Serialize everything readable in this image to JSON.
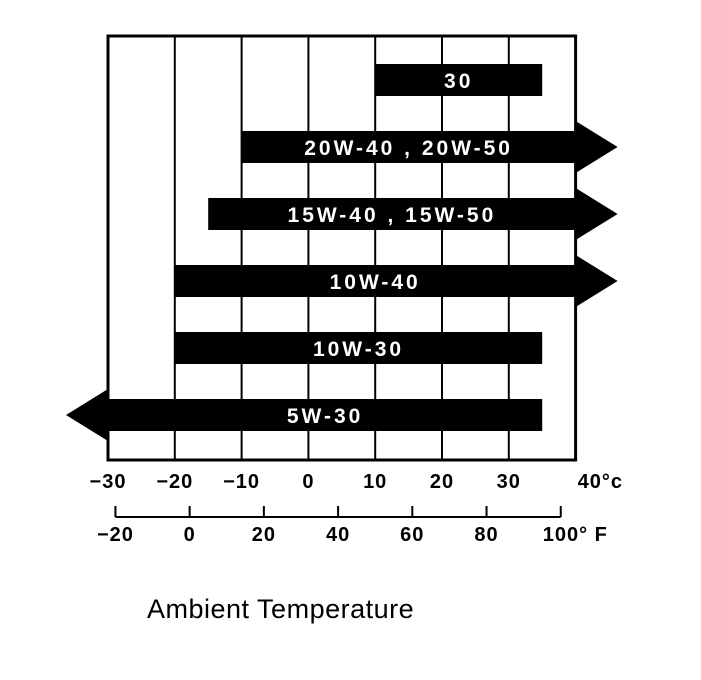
{
  "chart_data": {
    "type": "bar",
    "subtype": "horizontal-range",
    "title": "",
    "xlabel": "Ambient Temperature",
    "ylabel": "",
    "grid": true,
    "celsius_axis": {
      "range": [
        -30,
        40
      ],
      "ticks": [
        -30,
        -20,
        -10,
        0,
        10,
        20,
        30,
        40
      ],
      "unit_label": "°c"
    },
    "fahrenheit_axis": {
      "range": [
        -20,
        100
      ],
      "ticks": [
        -20,
        0,
        20,
        40,
        60,
        80,
        100
      ],
      "unit_label": "° F"
    },
    "series": [
      {
        "label": "30",
        "min_c": 10,
        "max_c": 35,
        "open_low": false,
        "open_high": false
      },
      {
        "label": "20W-40 , 20W-50",
        "min_c": -10,
        "max_c": 40,
        "open_low": false,
        "open_high": true
      },
      {
        "label": "15W-40 , 15W-50",
        "min_c": -15,
        "max_c": 40,
        "open_low": false,
        "open_high": true
      },
      {
        "label": "10W-40",
        "min_c": -20,
        "max_c": 40,
        "open_low": false,
        "open_high": true
      },
      {
        "label": "10W-30",
        "min_c": -20,
        "max_c": 35,
        "open_low": false,
        "open_high": false
      },
      {
        "label": "5W-30",
        "min_c": -30,
        "max_c": 35,
        "open_low": true,
        "open_high": false
      }
    ]
  }
}
